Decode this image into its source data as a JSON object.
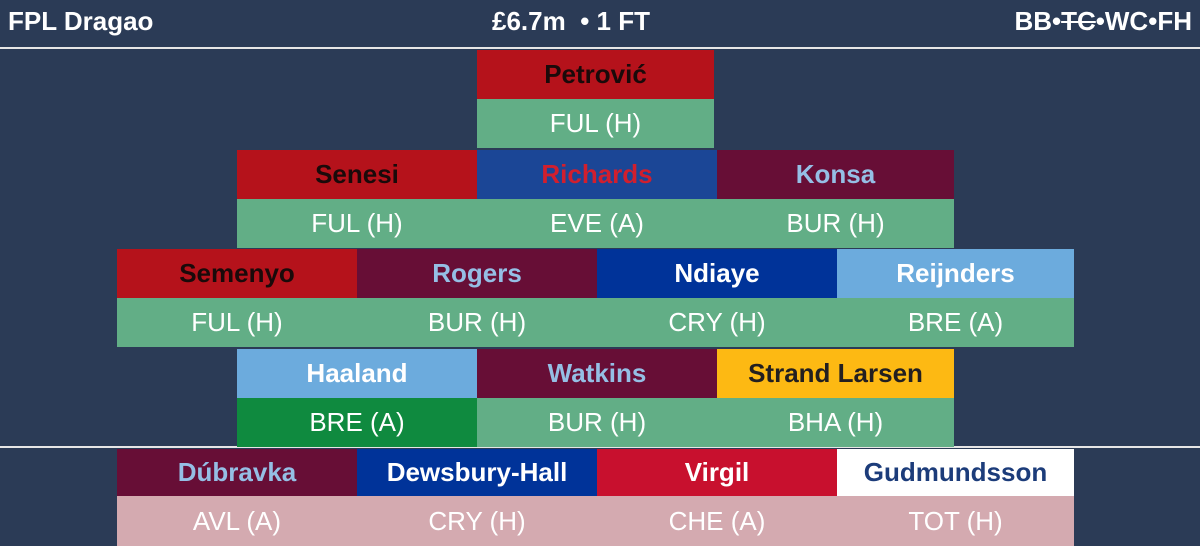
{
  "header": {
    "team": "FPL Dragao",
    "bank": "£6.7m",
    "transfers": "• 1 FT",
    "chip_separator": "•",
    "chips": [
      {
        "label": "BB",
        "used": false
      },
      {
        "label": "TC",
        "used": true
      },
      {
        "label": "WC",
        "used": false
      },
      {
        "label": "FH",
        "used": false
      }
    ]
  },
  "pitch": {
    "rows": [
      [
        {
          "name": "Petrović",
          "fixture": "FUL (H)",
          "bg": "#b5121b",
          "fg": "#1a0a0a",
          "fixture_bg": "#62ae86"
        }
      ],
      [
        {
          "name": "Senesi",
          "fixture": "FUL (H)",
          "bg": "#b5121b",
          "fg": "#1a0a0a",
          "fixture_bg": "#62ae86"
        },
        {
          "name": "Richards",
          "fixture": "EVE (A)",
          "bg": "#1b4696",
          "fg": "#d11f2e",
          "fixture_bg": "#62ae86"
        },
        {
          "name": "Konsa",
          "fixture": "BUR (H)",
          "bg": "#670e36",
          "fg": "#95bfe5",
          "fixture_bg": "#62ae86"
        }
      ],
      [
        {
          "name": "Semenyo",
          "fixture": "FUL (H)",
          "bg": "#b5121b",
          "fg": "#1a0a0a",
          "fixture_bg": "#62ae86"
        },
        {
          "name": "Rogers",
          "fixture": "BUR (H)",
          "bg": "#670e36",
          "fg": "#95bfe5",
          "fixture_bg": "#62ae86"
        },
        {
          "name": "Ndiaye",
          "fixture": "CRY (H)",
          "bg": "#003399",
          "fg": "#ffffff",
          "fixture_bg": "#62ae86"
        },
        {
          "name": "Reijnders",
          "fixture": "BRE (A)",
          "bg": "#6cabdd",
          "fg": "#ffffff",
          "fixture_bg": "#62ae86"
        }
      ],
      [
        {
          "name": "Haaland",
          "fixture": "BRE (A)",
          "bg": "#6cabdd",
          "fg": "#ffffff",
          "fixture_bg": "#0f8a3f"
        },
        {
          "name": "Watkins",
          "fixture": "BUR (H)",
          "bg": "#670e36",
          "fg": "#95bfe5",
          "fixture_bg": "#62ae86"
        },
        {
          "name": "Strand Larsen",
          "fixture": "BHA (H)",
          "bg": "#fdb913",
          "fg": "#231f20",
          "fixture_bg": "#62ae86"
        }
      ]
    ]
  },
  "bench": [
    {
      "name": "Dúbravka",
      "fixture": "AVL (A)",
      "bg": "#670e36",
      "fg": "#95bfe5",
      "fixture_bg": "#d4aab0"
    },
    {
      "name": "Dewsbury-Hall",
      "fixture": "CRY (H)",
      "bg": "#003399",
      "fg": "#ffffff",
      "fixture_bg": "#d4aab0"
    },
    {
      "name": "Virgil",
      "fixture": "CHE (A)",
      "bg": "#c8102e",
      "fg": "#ffffff",
      "fixture_bg": "#d4aab0"
    },
    {
      "name": "Gudmundsson",
      "fixture": "TOT (H)",
      "bg": "#ffffff",
      "fg": "#1c3c7a",
      "fixture_bg": "#d4aab0"
    }
  ]
}
